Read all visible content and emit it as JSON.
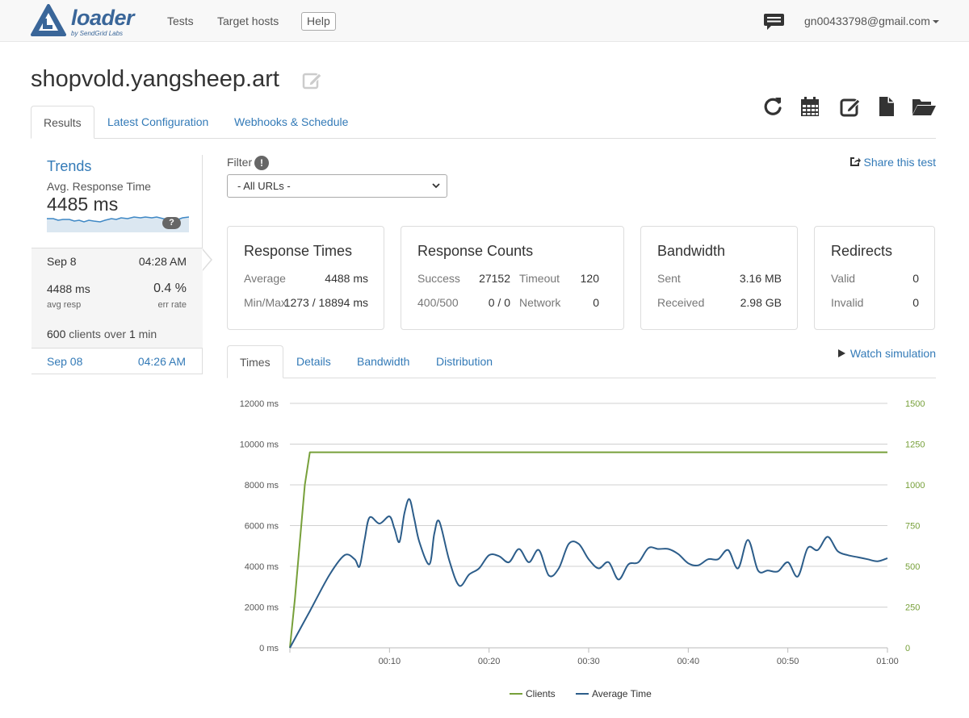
{
  "nav": {
    "logo_text": "loader",
    "logo_sub": "by SendGrid Labs",
    "tests": "Tests",
    "target_hosts": "Target hosts",
    "help": "Help",
    "user_email": "gn00433798@gmail.com"
  },
  "page": {
    "title": "shopvold.yangsheep.art"
  },
  "toolbar": {
    "icons": [
      "refresh-icon",
      "calendar-icon",
      "edit-icon",
      "file-icon",
      "folder-open-icon"
    ]
  },
  "tabs": [
    "Results",
    "Latest Configuration",
    "Webhooks & Schedule"
  ],
  "sidebar": {
    "trends": "Trends",
    "avg_label": "Avg. Response Time",
    "avg_value": "4485 ms",
    "help_badge": "?",
    "runs": [
      {
        "date": "Sep 8",
        "time": "04:28 AM",
        "avg_resp": "4488 ms",
        "avg_resp_label": "avg resp",
        "err_rate": "0.4 %",
        "err_rate_label": "err rate",
        "clients_count": "600",
        "clients_mid": " clients over ",
        "duration": "1",
        "clients_unit": " min"
      },
      {
        "date": "Sep 08",
        "time": "04:26 AM"
      }
    ]
  },
  "filter": {
    "label": "Filter",
    "info": "!",
    "selected": "- All URLs -"
  },
  "share": "Share this test",
  "cards": {
    "response_times": {
      "title": "Response Times",
      "average_label": "Average",
      "average_value": "4488 ms",
      "minmax_label": "Min/Max",
      "minmax_value": "1273 / 18894 ms"
    },
    "response_counts": {
      "title": "Response Counts",
      "success_label": "Success",
      "success_value": "27152",
      "timeout_label": "Timeout",
      "timeout_value": "120",
      "err_label": "400/500",
      "err_value": "0 / 0",
      "network_label": "Network",
      "network_value": "0"
    },
    "bandwidth": {
      "title": "Bandwidth",
      "sent_label": "Sent",
      "sent_value": "3.16 MB",
      "received_label": "Received",
      "received_value": "2.98 GB"
    },
    "redirects": {
      "title": "Redirects",
      "valid_label": "Valid",
      "valid_value": "0",
      "invalid_label": "Invalid",
      "invalid_value": "0"
    }
  },
  "sub_tabs": [
    "Times",
    "Details",
    "Bandwidth",
    "Distribution"
  ],
  "watch": "Watch simulation",
  "colors": {
    "link": "#337ab7",
    "clients": "#77a03a",
    "avg_time": "#2c5d8a"
  },
  "chart_data": {
    "type": "line",
    "x_tick_labels": [
      "00:10",
      "00:20",
      "00:30",
      "00:40",
      "00:50",
      "01:00"
    ],
    "x_ticks": [
      10,
      20,
      30,
      40,
      50,
      60
    ],
    "xlim": [
      0,
      60
    ],
    "y_left_ticks": [
      "0 ms",
      "2000 ms",
      "4000 ms",
      "6000 ms",
      "8000 ms",
      "10000 ms",
      "12000 ms"
    ],
    "y_left_lim": [
      0,
      12000
    ],
    "y_right_ticks": [
      "0",
      "250",
      "500",
      "750",
      "1000",
      "1250",
      "1500"
    ],
    "y_right_lim": [
      0,
      1500
    ],
    "grid": true,
    "legend_position": "bottom",
    "series": [
      {
        "name": "Clients",
        "axis": "right",
        "color": "#77a03a",
        "x": [
          0,
          0.5,
          1,
          1.5,
          2,
          60
        ],
        "y": [
          0,
          300,
          650,
          1000,
          1200,
          1200
        ]
      },
      {
        "name": "Average Time",
        "axis": "left",
        "color": "#2c5d8a",
        "x": [
          0,
          2,
          4,
          5.5,
          6.5,
          7,
          7.5,
          8,
          9,
          10,
          10.5,
          11,
          11.5,
          12,
          12.5,
          13,
          14,
          14.5,
          15,
          16,
          17,
          18,
          19,
          20,
          21,
          22,
          23,
          24,
          25,
          26,
          27,
          28,
          29,
          30,
          31,
          32,
          33,
          34,
          35,
          36,
          37,
          38,
          39,
          40,
          41,
          42,
          43,
          44,
          45,
          46,
          47,
          48,
          49,
          50,
          51,
          52,
          53,
          54,
          55,
          56,
          57,
          58,
          59,
          60
        ],
        "y": [
          0,
          1800,
          3600,
          4550,
          4350,
          4000,
          5300,
          6400,
          6100,
          6450,
          5850,
          5200,
          6600,
          7300,
          6300,
          5200,
          4100,
          5600,
          6200,
          4300,
          3050,
          3600,
          3900,
          4550,
          4500,
          4200,
          4850,
          4200,
          4800,
          3550,
          3900,
          5100,
          5100,
          4350,
          3900,
          4200,
          3350,
          4100,
          4200,
          4900,
          4850,
          4850,
          4600,
          4150,
          4050,
          4350,
          4350,
          4800,
          3900,
          5300,
          3800,
          3800,
          3750,
          4200,
          3500,
          4900,
          4800,
          5450,
          4750,
          4550,
          4450,
          4350,
          4250,
          4400
        ]
      }
    ]
  }
}
